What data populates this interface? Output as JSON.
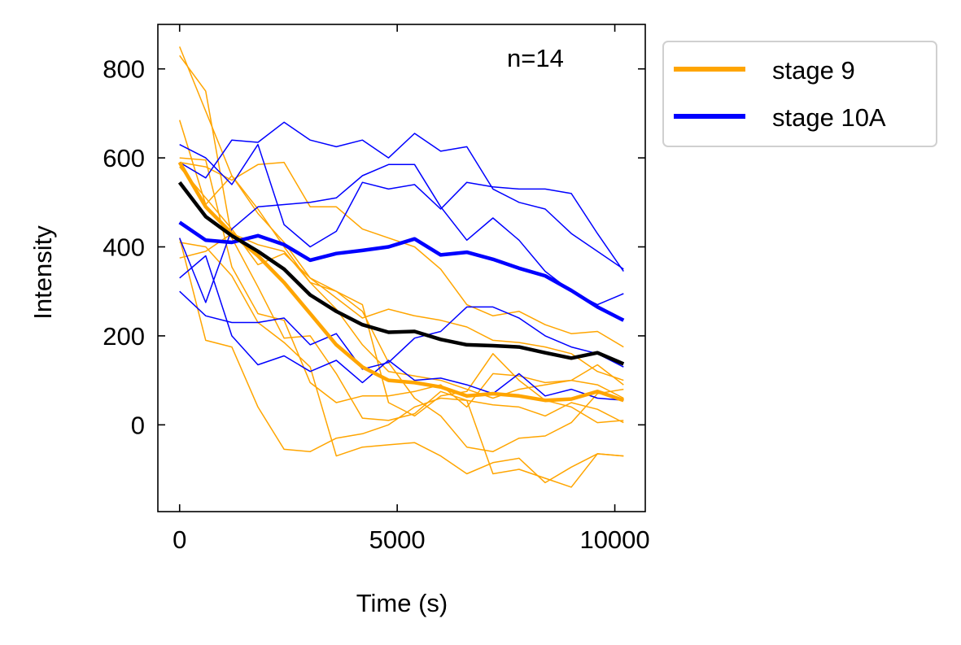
{
  "chart_data": {
    "type": "line",
    "title": "",
    "xlabel": "Time (s)",
    "ylabel": "Intensity",
    "xlim": [
      -500,
      10700
    ],
    "ylim": [
      -195,
      900
    ],
    "xticks": [
      0,
      5000,
      10000
    ],
    "xtick_labels": [
      "0",
      "5000",
      "10000"
    ],
    "yticks": [
      0,
      200,
      400,
      600,
      800
    ],
    "ytick_labels": [
      "0",
      "200",
      "400",
      "600",
      "800"
    ],
    "grid": false,
    "legend_position": "outside-top-right",
    "annotation": "n=14",
    "colors": {
      "stage9": "#FFA500",
      "stage10A": "#0000FF",
      "overall": "#000000"
    },
    "x": [
      0,
      600,
      1200,
      1800,
      2400,
      3000,
      3600,
      4200,
      4800,
      5400,
      6000,
      6600,
      7200,
      7800,
      8400,
      9000,
      9600,
      10200
    ],
    "series": [
      {
        "name": "stage 9",
        "role": "mean",
        "color": "#FFA500",
        "values": [
          590,
          490,
          430,
          380,
          320,
          250,
          180,
          130,
          100,
          95,
          85,
          65,
          70,
          65,
          55,
          58,
          75,
          55
        ]
      },
      {
        "name": "stage 10A",
        "role": "mean",
        "color": "#0000FF",
        "values": [
          455,
          415,
          410,
          425,
          405,
          370,
          385,
          392,
          400,
          418,
          382,
          388,
          372,
          352,
          335,
          302,
          265,
          235
        ]
      },
      {
        "role": "mean",
        "color": "#000000",
        "values": [
          545,
          468,
          425,
          390,
          350,
          292,
          255,
          225,
          208,
          210,
          192,
          180,
          178,
          175,
          162,
          150,
          162,
          137
        ]
      },
      {
        "role": "trace",
        "color": "#FFA500",
        "values": [
          850,
          705,
          560,
          485,
          400,
          320,
          260,
          180,
          120,
          110,
          100,
          80,
          60,
          80,
          90,
          100,
          90,
          60
        ]
      },
      {
        "role": "trace",
        "color": "#FFA500",
        "values": [
          830,
          750,
          420,
          310,
          195,
          200,
          115,
          15,
          10,
          25,
          75,
          55,
          45,
          40,
          20,
          50,
          35,
          5
        ]
      },
      {
        "role": "trace",
        "color": "#FFA500",
        "values": [
          685,
          495,
          560,
          475,
          410,
          330,
          300,
          270,
          50,
          20,
          65,
          75,
          160,
          100,
          55,
          40,
          5,
          10
        ]
      },
      {
        "role": "trace",
        "color": "#FFA500",
        "values": [
          600,
          595,
          355,
          250,
          235,
          95,
          50,
          65,
          65,
          75,
          90,
          40,
          115,
          110,
          95,
          100,
          135,
          90
        ]
      },
      {
        "role": "trace",
        "color": "#FFA500",
        "values": [
          590,
          580,
          550,
          585,
          590,
          490,
          490,
          440,
          420,
          400,
          350,
          270,
          245,
          255,
          225,
          205,
          210,
          175
        ]
      },
      {
        "role": "trace",
        "color": "#FFA500",
        "values": [
          580,
          510,
          440,
          360,
          385,
          330,
          285,
          240,
          260,
          245,
          235,
          220,
          190,
          185,
          175,
          160,
          120,
          100
        ]
      },
      {
        "role": "trace",
        "color": "#FFA500",
        "values": [
          420,
          190,
          175,
          40,
          -55,
          -60,
          -30,
          -20,
          0,
          40,
          60,
          55,
          -110,
          -100,
          -120,
          -140,
          -65,
          -70
        ]
      },
      {
        "role": "trace",
        "color": "#FFA500",
        "values": [
          410,
          400,
          335,
          230,
          185,
          130,
          -70,
          -50,
          -45,
          -40,
          -70,
          -110,
          -85,
          -75,
          -130,
          -95,
          -65,
          -70
        ]
      },
      {
        "role": "trace",
        "color": "#FFA500",
        "values": [
          375,
          390,
          430,
          405,
          390,
          320,
          300,
          255,
          140,
          60,
          20,
          -50,
          -60,
          -30,
          -25,
          5,
          70,
          80
        ]
      },
      {
        "role": "trace",
        "color": "#0000FF",
        "values": [
          630,
          600,
          540,
          630,
          450,
          400,
          435,
          545,
          530,
          540,
          485,
          545,
          535,
          530,
          530,
          520,
          430,
          345
        ]
      },
      {
        "role": "trace",
        "color": "#0000FF",
        "values": [
          590,
          555,
          640,
          635,
          680,
          640,
          625,
          640,
          600,
          655,
          615,
          625,
          530,
          500,
          485,
          430,
          390,
          350
        ]
      },
      {
        "role": "trace",
        "color": "#0000FF",
        "values": [
          420,
          275,
          440,
          490,
          495,
          500,
          510,
          560,
          585,
          585,
          490,
          415,
          465,
          415,
          345,
          300,
          270,
          295
        ]
      },
      {
        "role": "trace",
        "color": "#0000FF",
        "values": [
          330,
          380,
          200,
          135,
          155,
          120,
          145,
          95,
          145,
          100,
          105,
          90,
          70,
          115,
          65,
          80,
          60,
          55
        ]
      },
      {
        "role": "trace",
        "color": "#0000FF",
        "values": [
          300,
          245,
          230,
          230,
          240,
          180,
          205,
          125,
          140,
          195,
          210,
          265,
          265,
          240,
          200,
          175,
          160,
          130
        ]
      }
    ]
  },
  "legend": {
    "stage9": "stage 9",
    "stage10A": "stage 10A"
  }
}
